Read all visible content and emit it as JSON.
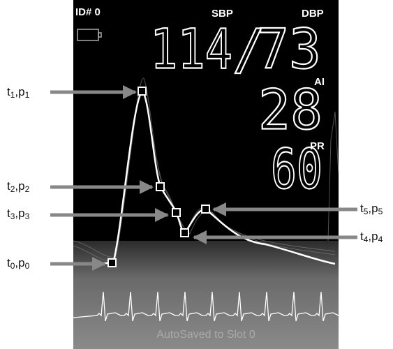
{
  "screen": {
    "id": "ID# 0",
    "sbp_label": "SBP",
    "dbp_label": "DBP",
    "sbp": "114",
    "separator": "/",
    "dbp": "73",
    "ai_label": "AI",
    "ai": "28",
    "pr_label": "PR",
    "pr": "60",
    "status": "AutoSaved to Slot 0"
  },
  "annotations": [
    {
      "parts": [
        "t",
        "1",
        ",p",
        "1"
      ]
    },
    {
      "parts": [
        "t",
        "2",
        ",p",
        "2"
      ]
    },
    {
      "parts": [
        "t",
        "3",
        ",p",
        "3"
      ]
    },
    {
      "parts": [
        "t",
        "0",
        ",p",
        "0"
      ]
    },
    {
      "parts": [
        "t",
        "5",
        ",p",
        "5"
      ]
    },
    {
      "parts": [
        "t",
        "4",
        ",p",
        "4"
      ]
    }
  ]
}
